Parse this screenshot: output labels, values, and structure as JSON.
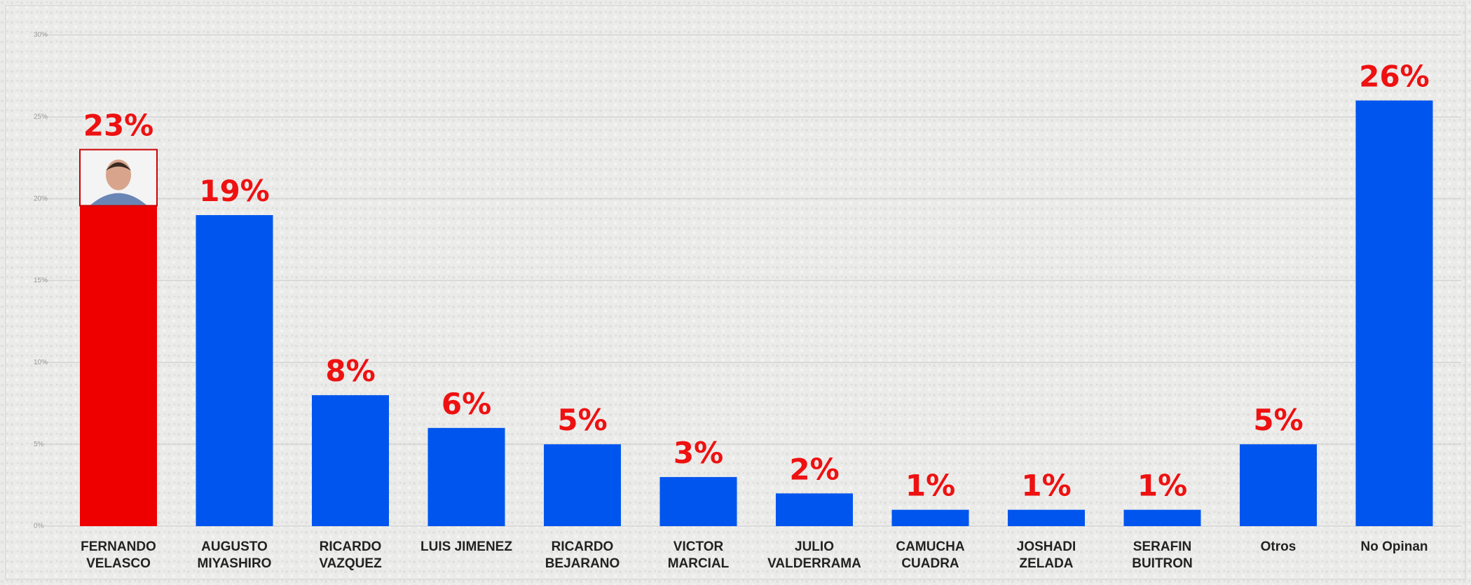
{
  "chart_data": {
    "type": "bar",
    "categories": [
      [
        "FERNANDO",
        "VELASCO"
      ],
      [
        "AUGUSTO",
        "MIYASHIRO"
      ],
      [
        "RICARDO",
        "VAZQUEZ"
      ],
      [
        "LUIS JIMENEZ"
      ],
      [
        "RICARDO",
        "BEJARANO"
      ],
      [
        "VICTOR",
        "MARCIAL"
      ],
      [
        "JULIO",
        "VALDERRAMA"
      ],
      [
        "CAMUCHA",
        "CUADRA"
      ],
      [
        "JOSHADI",
        "ZELADA"
      ],
      [
        "SERAFIN",
        "BUITRON"
      ],
      [
        "Otros"
      ],
      [
        "No Opinan"
      ]
    ],
    "values": [
      23,
      19,
      8,
      6,
      5,
      3,
      2,
      1,
      1,
      1,
      5,
      26
    ],
    "value_labels": [
      "23%",
      "19%",
      "8%",
      "6%",
      "5%",
      "3%",
      "2%",
      "1%",
      "1%",
      "1%",
      "5%",
      "26%"
    ],
    "colors": [
      "#ee0000",
      "#0055ee",
      "#0055ee",
      "#0055ee",
      "#0055ee",
      "#0055ee",
      "#0055ee",
      "#0055ee",
      "#0055ee",
      "#0055ee",
      "#0055ee",
      "#0055ee"
    ],
    "ylim": [
      0,
      30
    ],
    "yticks": [
      {
        "value": 0,
        "label": "0%"
      },
      {
        "value": 5,
        "label": "5%"
      },
      {
        "value": 10,
        "label": "10%"
      },
      {
        "value": 15,
        "label": "15%"
      },
      {
        "value": 20,
        "label": "20%"
      },
      {
        "value": 25,
        "label": "25%"
      },
      {
        "value": 30,
        "label": "30%"
      }
    ],
    "grid": true
  }
}
